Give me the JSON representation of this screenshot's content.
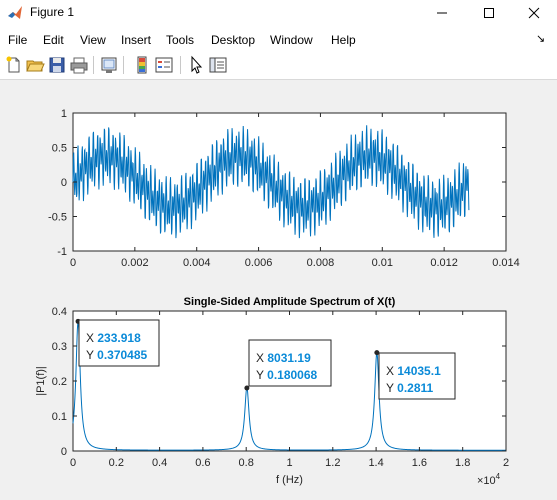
{
  "window": {
    "title": "Figure 1",
    "controls": [
      "minimize",
      "maximize",
      "close"
    ]
  },
  "menu": {
    "items": [
      "File",
      "Edit",
      "View",
      "Insert",
      "Tools",
      "Desktop",
      "Window",
      "Help"
    ],
    "overflow_arrow": "↘"
  },
  "toolbar": {
    "icons": [
      "new-figure-icon",
      "open-file-icon",
      "save-icon",
      "print-icon",
      "link-plot-icon",
      "colorbar-icon",
      "legend-icon",
      "edit-plot-icon",
      "property-inspector-icon"
    ]
  },
  "colors": {
    "series": "#0072bd",
    "datatip_value": "#0a8ad8",
    "axes_bg": "#ffffff",
    "figure_bg": "#f0f0f0"
  },
  "chart_data": [
    {
      "type": "line",
      "title": "",
      "xlabel": "",
      "ylabel": "",
      "xlim": [
        0,
        0.014
      ],
      "ylim": [
        -1,
        1
      ],
      "xticks": [
        "0",
        "0.002",
        "0.004",
        "0.006",
        "0.008",
        "0.01",
        "0.012",
        "0.014"
      ],
      "yticks": [
        "-1",
        "-0.5",
        "0",
        "0.5",
        "1"
      ],
      "grid": false,
      "series": [
        {
          "components": [
            {
              "amplitude": 0.37,
              "frequency_hz": 234
            },
            {
              "amplitude": 0.18,
              "frequency_hz": 8031
            },
            {
              "amplitude": 0.28,
              "frequency_hz": 14035
            }
          ],
          "x_range": [
            0,
            0.0128
          ]
        }
      ]
    },
    {
      "type": "line",
      "title": "Single-Sided Amplitude Spectrum of X(t)",
      "xlabel": "f (Hz)",
      "ylabel": "|P1(f)|",
      "xlim": [
        0,
        20000
      ],
      "ylim": [
        0,
        0.4
      ],
      "xticks": [
        "0",
        "0.2",
        "0.4",
        "0.6",
        "0.8",
        "1",
        "1.2",
        "1.4",
        "1.6",
        "1.8",
        "2"
      ],
      "yticks": [
        "0",
        "0.1",
        "0.2",
        "0.3",
        "0.4"
      ],
      "x_exponent_label": "×10",
      "x_exponent": "4",
      "grid": false,
      "peaks": [
        {
          "x": 233.918,
          "y": 0.370485
        },
        {
          "x": 8031.19,
          "y": 0.180068
        },
        {
          "x": 14035.1,
          "y": 0.2811
        }
      ],
      "datatips": [
        {
          "x_label": "X",
          "x_value": "233.918",
          "y_label": "Y",
          "y_value": "0.370485"
        },
        {
          "x_label": "X",
          "x_value": "8031.19",
          "y_label": "Y",
          "y_value": "0.180068"
        },
        {
          "x_label": "X",
          "x_value": "14035.1",
          "y_label": "Y",
          "y_value": "0.2811"
        }
      ]
    }
  ]
}
